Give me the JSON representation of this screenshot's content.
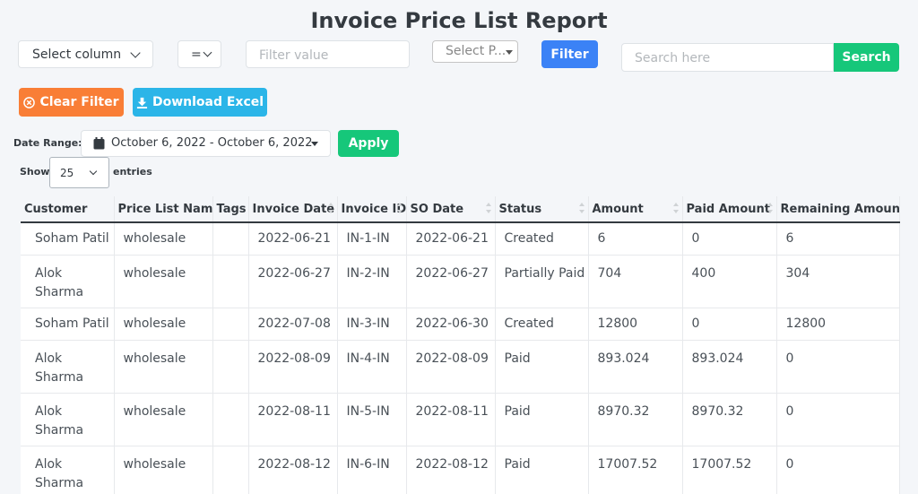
{
  "page": {
    "title": "Invoice Price List Report"
  },
  "filters": {
    "column_select": "Select column",
    "operator_select": "=",
    "filter_value_placeholder": "Filter value",
    "pricelist_select": "Select P...",
    "filter_button": "Filter",
    "search_placeholder": "Search here",
    "search_button": "Search"
  },
  "actions": {
    "clear_filter": "Clear Filter",
    "download_excel": "Download Excel"
  },
  "date_range": {
    "label": "Date Range:",
    "value": "October 6, 2022 - October 6, 2022",
    "apply": "Apply"
  },
  "entries": {
    "show_label": "Show",
    "count": "25",
    "entries_label": "entries"
  },
  "table": {
    "columns": [
      "Customer",
      "Price List Name",
      "Tags",
      "Invoice Date",
      "Invoice ID",
      "SO Date",
      "Status",
      "Amount",
      "Paid Amount",
      "Remaining Amount"
    ],
    "rows": [
      {
        "customer": "Soham Patil",
        "price_list": "wholesale",
        "tags": "",
        "invoice_date": "2022-06-21",
        "invoice_id": "IN-1-IN",
        "so_date": "2022-06-21",
        "status": "Created",
        "amount": "6",
        "paid": "0",
        "remaining": "6"
      },
      {
        "customer": "Alok Sharma",
        "price_list": "wholesale",
        "tags": "",
        "invoice_date": "2022-06-27",
        "invoice_id": "IN-2-IN",
        "so_date": "2022-06-27",
        "status": "Partially Paid",
        "amount": "704",
        "paid": "400",
        "remaining": "304"
      },
      {
        "customer": "Soham Patil",
        "price_list": "wholesale",
        "tags": "",
        "invoice_date": "2022-07-08",
        "invoice_id": "IN-3-IN",
        "so_date": "2022-06-30",
        "status": "Created",
        "amount": "12800",
        "paid": "0",
        "remaining": "12800"
      },
      {
        "customer": "Alok Sharma",
        "price_list": "wholesale",
        "tags": "",
        "invoice_date": "2022-08-09",
        "invoice_id": "IN-4-IN",
        "so_date": "2022-08-09",
        "status": "Paid",
        "amount": "893.024",
        "paid": "893.024",
        "remaining": "0"
      },
      {
        "customer": "Alok Sharma",
        "price_list": "wholesale",
        "tags": "",
        "invoice_date": "2022-08-11",
        "invoice_id": "IN-5-IN",
        "so_date": "2022-08-11",
        "status": "Paid",
        "amount": "8970.32",
        "paid": "8970.32",
        "remaining": "0"
      },
      {
        "customer": "Alok Sharma",
        "price_list": "wholesale",
        "tags": "",
        "invoice_date": "2022-08-12",
        "invoice_id": "IN-6-IN",
        "so_date": "2022-08-12",
        "status": "Paid",
        "amount": "17007.52",
        "paid": "17007.52",
        "remaining": "0"
      }
    ]
  },
  "colors": {
    "filter_blue": "#3b82f6",
    "search_green": "#16c77a",
    "clear_orange": "#f97e36",
    "excel_cyan": "#2bb5e8"
  },
  "icons": {
    "clear_filter": "circle-x-icon",
    "download_excel": "download-icon",
    "date_range": "calendar-icon"
  }
}
